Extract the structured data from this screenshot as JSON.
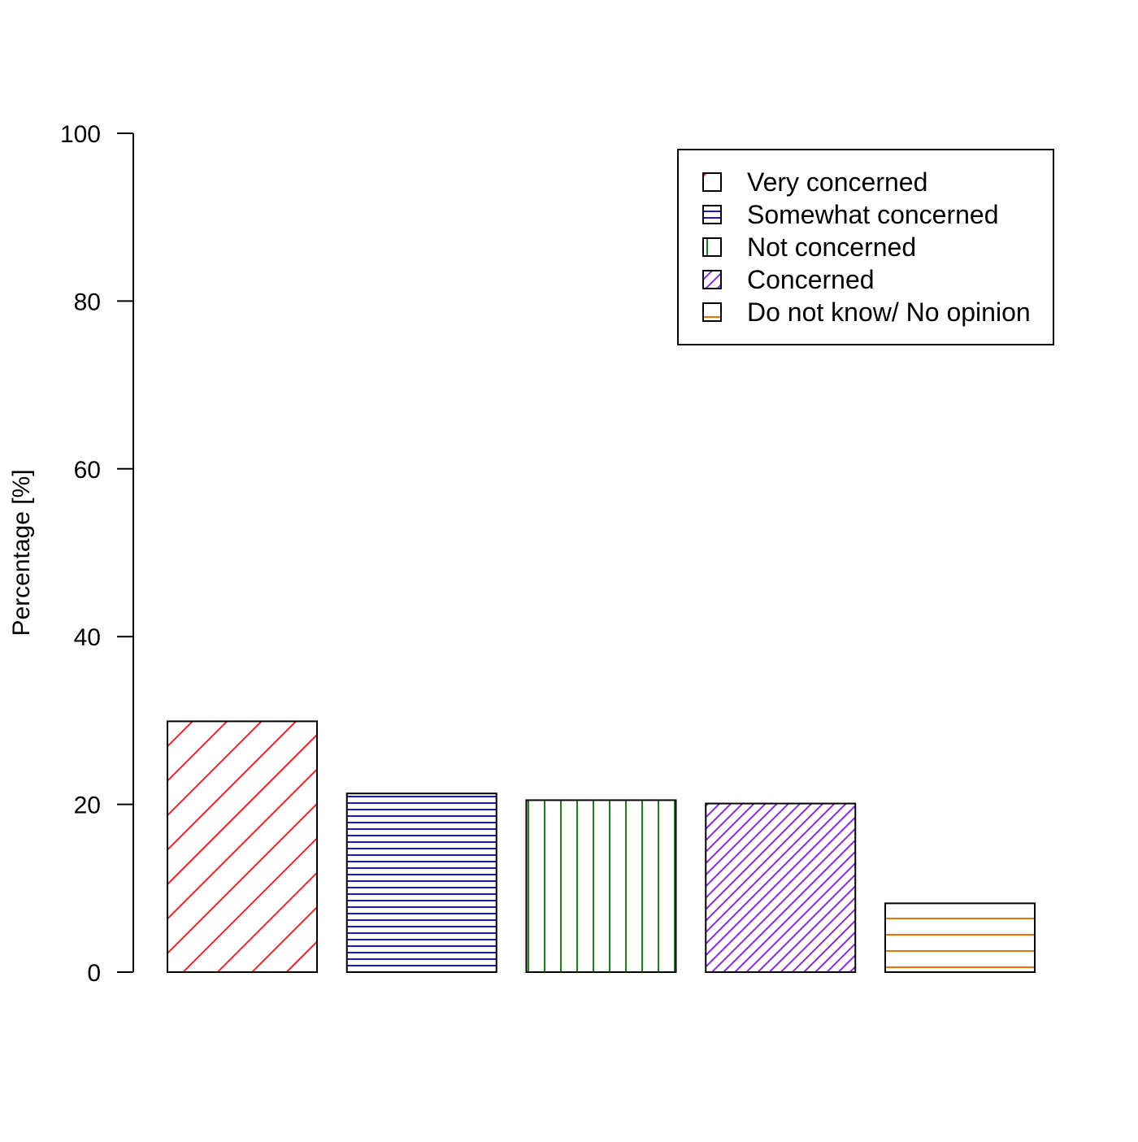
{
  "chart_data": {
    "type": "bar",
    "title": "",
    "xlabel": "",
    "ylabel": "Percentage [%]",
    "ylim": [
      0,
      100
    ],
    "yticks": [
      "0",
      "20",
      "40",
      "60",
      "80",
      "100"
    ],
    "ytick_values": [
      0,
      20,
      40,
      60,
      80,
      100
    ],
    "grid": false,
    "legend_position": "top-right",
    "categories": [
      "Very concerned",
      "Somewhat concerned",
      "Not concerned",
      "Concerned",
      "Do not know/ No opinion"
    ],
    "values": [
      29.9,
      21.3,
      20.5,
      20.1,
      8.2
    ],
    "series_styles": [
      {
        "color": "#e8252b",
        "pattern": "diagonal-wide"
      },
      {
        "color": "#1c17c8",
        "pattern": "horizontal-dense"
      },
      {
        "color": "#1e7f1e",
        "pattern": "vertical"
      },
      {
        "color": "#8a2be2",
        "pattern": "diagonal-dense"
      },
      {
        "color": "#ee7600",
        "pattern": "horizontal-wide"
      }
    ]
  }
}
